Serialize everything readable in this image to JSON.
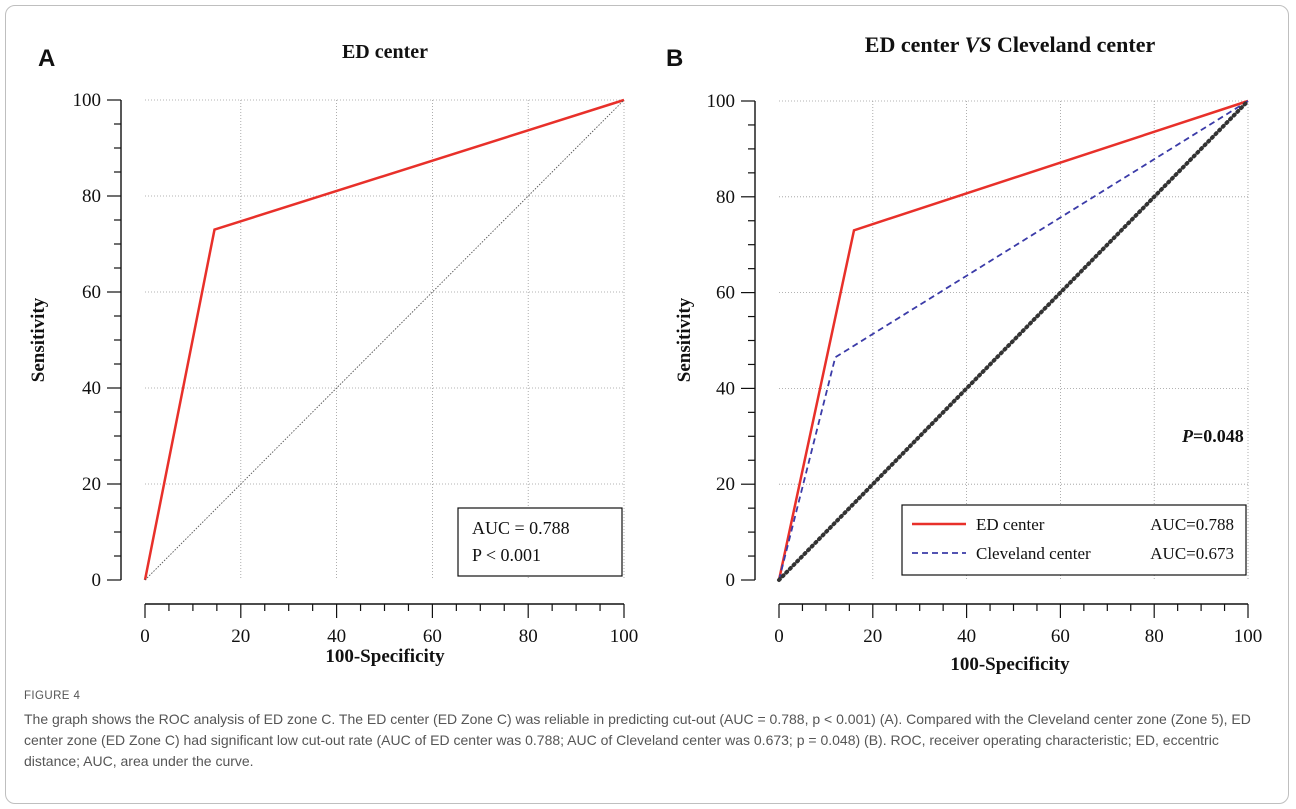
{
  "figure": {
    "caption_label": "FIGURE 4",
    "caption_text": "The graph shows the ROC analysis of ED zone C. The ED center (ED Zone C) was reliable in predicting cut-out (AUC = 0.788, p < 0.001) (A). Compared with the Cleveland center zone (Zone 5), ED center zone (ED Zone C) had significant low cut-out rate (AUC of ED center was 0.788; AUC of Cleveland center was 0.673; p = 0.048) (B). ROC, receiver operating characteristic; ED, eccentric distance; AUC, area under the curve."
  },
  "chart_data": [
    {
      "panel_label": "A",
      "type": "line",
      "title": "ED center",
      "xlabel": "100-Specificity",
      "ylabel": "Sensitivity",
      "xlim": [
        0,
        100
      ],
      "ylim": [
        0,
        100
      ],
      "x_ticks": [
        0,
        20,
        40,
        60,
        80,
        100
      ],
      "y_ticks": [
        0,
        20,
        40,
        60,
        80,
        100
      ],
      "grid": true,
      "series": [
        {
          "points": [
            [
              0,
              0
            ],
            [
              14.5,
              73
            ],
            [
              100,
              100
            ]
          ],
          "color": "#e8302a",
          "style": "solid"
        },
        {
          "points": [
            [
              0,
              0
            ],
            [
              100,
              100
            ]
          ],
          "color": "#555555",
          "style": "dotted"
        }
      ],
      "annotation": {
        "position": "bottom-right",
        "lines": [
          "AUC = 0.788",
          "P < 0.001"
        ]
      }
    },
    {
      "panel_label": "B",
      "type": "line",
      "title": "ED center VS Cleveland center",
      "title_parts": [
        "ED center ",
        "VS",
        " Cleveland center"
      ],
      "xlabel": "100-Specificity",
      "ylabel": "Sensitivity",
      "xlim": [
        0,
        100
      ],
      "ylim": [
        0,
        100
      ],
      "x_ticks": [
        0,
        20,
        40,
        60,
        80,
        100
      ],
      "y_ticks": [
        0,
        20,
        40,
        60,
        80,
        100
      ],
      "grid": true,
      "series": [
        {
          "name": "ED center",
          "auc_label": "AUC=0.788",
          "points": [
            [
              0,
              0
            ],
            [
              16,
              73
            ],
            [
              100,
              100
            ]
          ],
          "color": "#e8302a",
          "style": "solid"
        },
        {
          "name": "Cleveland center",
          "auc_label": "AUC=0.673",
          "points": [
            [
              0,
              0
            ],
            [
              12,
              46.5
            ],
            [
              100,
              100
            ]
          ],
          "color": "#3b3ba8",
          "style": "dashed"
        },
        {
          "points": [
            [
              0,
              0
            ],
            [
              100,
              100
            ]
          ],
          "color": "#333333",
          "style": "dotted-thick"
        }
      ],
      "annotation": {
        "position": "right",
        "text_italic": "P",
        "text": "=0.048"
      },
      "legend": "bottom-right"
    }
  ]
}
